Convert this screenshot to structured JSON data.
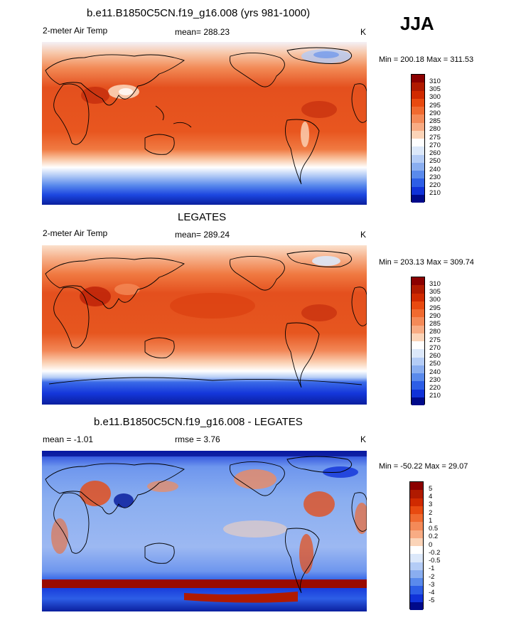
{
  "season": "JJA",
  "panels": [
    {
      "title": "b.e11.B1850C5CN.f19_g16.008 (yrs 981-1000)",
      "left": "2-meter Air Temp",
      "center": "mean= 288.23",
      "right": "K",
      "minmax": "Min = 200.18 Max = 311.53"
    },
    {
      "title": "LEGATES",
      "left": "2-meter Air Temp",
      "center": "mean= 289.24",
      "right": "K",
      "minmax": "Min = 203.13 Max = 309.74"
    },
    {
      "title": "b.e11.B1850C5CN.f19_g16.008 - LEGATES",
      "left": "mean =  -1.01",
      "center": "rmse =   3.76",
      "right": "K",
      "minmax": "Min = -50.22 Max =  29.07"
    }
  ],
  "colorbars": {
    "temperature": {
      "levels": [
        "310",
        "305",
        "300",
        "295",
        "290",
        "285",
        "280",
        "275",
        "270",
        "260",
        "250",
        "240",
        "230",
        "220",
        "210"
      ],
      "colors": [
        "#8b0000",
        "#b01a00",
        "#d02a00",
        "#e84a10",
        "#f06a30",
        "#f48a58",
        "#f8ac84",
        "#fbd4b8",
        "#ffffff",
        "#dce8fa",
        "#b4ccf6",
        "#8aaef0",
        "#5a8aec",
        "#2d5ee6",
        "#1032d8",
        "#000a8a"
      ]
    },
    "difference": {
      "levels": [
        "5",
        "4",
        "3",
        "2",
        "1",
        "0.5",
        "0.2",
        "0",
        "-0.2",
        "-0.5",
        "-1",
        "-2",
        "-3",
        "-4",
        "-5"
      ],
      "colors": [
        "#8b0000",
        "#b01a00",
        "#d02a00",
        "#e84a10",
        "#f06a30",
        "#f48a58",
        "#f8ac84",
        "#fbd4b8",
        "#ffffff",
        "#dce8fa",
        "#b4ccf6",
        "#8aaef0",
        "#5a8aec",
        "#2d5ee6",
        "#1032d8",
        "#000a8a"
      ]
    }
  },
  "chart_data": [
    {
      "type": "heatmap",
      "title": "b.e11.B1850C5CN.f19_g16.008 (yrs 981-1000)",
      "subtitle": "2-meter Air Temp",
      "units": "K",
      "mean": 288.23,
      "min": 200.18,
      "max": 311.53,
      "season": "JJA",
      "legend": "right"
    },
    {
      "type": "heatmap",
      "title": "LEGATES",
      "subtitle": "2-meter Air Temp",
      "units": "K",
      "mean": 289.24,
      "min": 203.13,
      "max": 309.74,
      "legend": "right"
    },
    {
      "type": "heatmap",
      "title": "b.e11.B1850C5CN.f19_g16.008 - LEGATES",
      "units": "K",
      "mean": -1.01,
      "rmse": 3.76,
      "min": -50.22,
      "max": 29.07,
      "legend": "right"
    }
  ]
}
